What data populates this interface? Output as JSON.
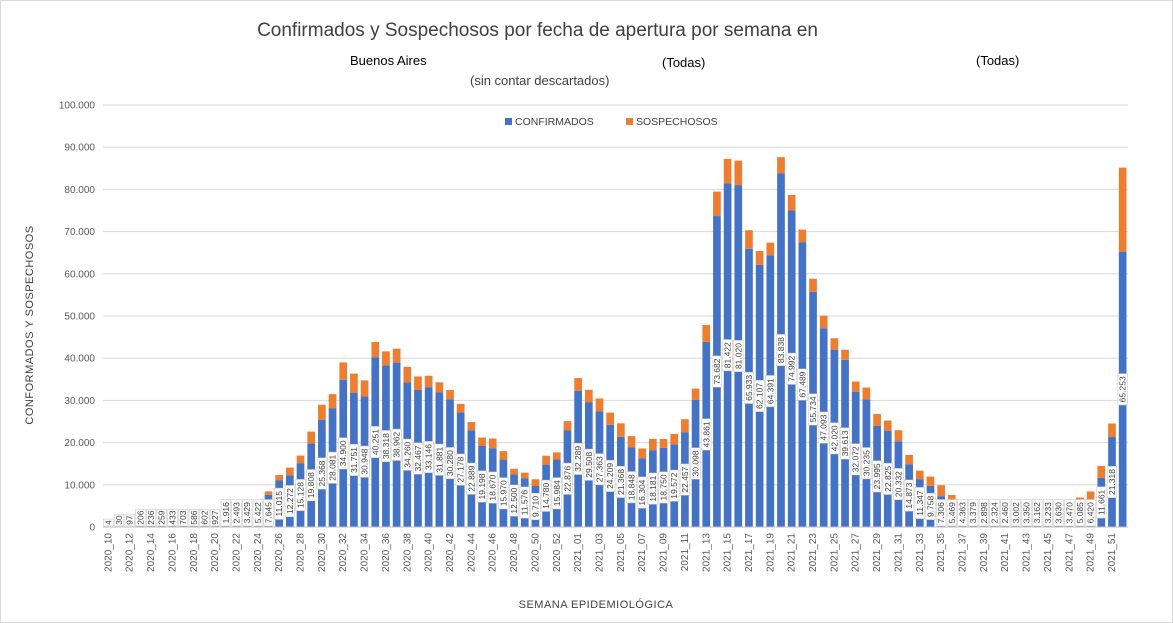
{
  "chart_data": {
    "type": "bar",
    "stacked": true,
    "title": "Confirmados y Sospechosos por fecha de apertura por semana en",
    "subtitle_left": "Buenos Aires",
    "subtitle_mid": "(Todas)",
    "subtitle_right": "(Todas)",
    "subtitle_note": "(sin contar descartados)",
    "xlabel": "SEMANA EPIDEMIOLÓGICA",
    "ylabel": "CONFORMADOS Y SOSPECHOSOS",
    "ylim": [
      0,
      100000
    ],
    "yticks": [
      "0",
      "10.000",
      "20.000",
      "30.000",
      "40.000",
      "50.000",
      "60.000",
      "70.000",
      "80.000",
      "90.000",
      "100.000"
    ],
    "legend": {
      "position": "top",
      "confirmados": "CONFIRMADOS",
      "sospechosos": "SOSPECHOSOS"
    },
    "colors": {
      "confirmados": "#4472c4",
      "sospechosos": "#ed7d31"
    },
    "categories": [
      "2020_10",
      "2020_11",
      "2020_12",
      "2020_13",
      "2020_14",
      "2020_15",
      "2020_16",
      "2020_17",
      "2020_18",
      "2020_19",
      "2020_20",
      "2020_21",
      "2020_22",
      "2020_23",
      "2020_24",
      "2020_25",
      "2020_26",
      "2020_27",
      "2020_28",
      "2020_29",
      "2020_30",
      "2020_31",
      "2020_32",
      "2020_33",
      "2020_34",
      "2020_35",
      "2020_36",
      "2020_37",
      "2020_38",
      "2020_39",
      "2020_40",
      "2020_41",
      "2020_42",
      "2020_43",
      "2020_44",
      "2020_45",
      "2020_46",
      "2020_47",
      "2020_48",
      "2020_49",
      "2020_50",
      "2020_51",
      "2020_52",
      "2020_53",
      "2021_01",
      "2021_02",
      "2021_03",
      "2021_04",
      "2021_05",
      "2021_06",
      "2021_07",
      "2021_08",
      "2021_09",
      "2021_10",
      "2021_11",
      "2021_12",
      "2021_13",
      "2021_14",
      "2021_15",
      "2021_16",
      "2021_17",
      "2021_18",
      "2021_19",
      "2021_20",
      "2021_21",
      "2021_22",
      "2021_23",
      "2021_24",
      "2021_25",
      "2021_26",
      "2021_27",
      "2021_28",
      "2021_29",
      "2021_30",
      "2021_31",
      "2021_32",
      "2021_33",
      "2021_34",
      "2021_35",
      "2021_36",
      "2021_37",
      "2021_38",
      "2021_39",
      "2021_40",
      "2021_41",
      "2021_42",
      "2021_43",
      "2021_44",
      "2021_45",
      "2021_46",
      "2021_47",
      "2021_48",
      "2021_49",
      "2021_50",
      "2021_51",
      "2021_52"
    ],
    "xtick_labels": [
      "2020_10",
      "2020_12",
      "2020_14",
      "2020_16",
      "2020_18",
      "2020_20",
      "2020_22",
      "2020_24",
      "2020_26",
      "2020_28",
      "2020_30",
      "2020_32",
      "2020_34",
      "2020_36",
      "2020_38",
      "2020_40",
      "2020_42",
      "2020_44",
      "2020_46",
      "2020_48",
      "2020_50",
      "2020_52",
      "2021_01",
      "2021_03",
      "2021_05",
      "2021_07",
      "2021_09",
      "2021_11",
      "2021_13",
      "2021_15",
      "2021_17",
      "2021_19",
      "2021_21",
      "2021_23",
      "2021_25",
      "2021_27",
      "2021_29",
      "2021_31",
      "2021_33",
      "2021_35",
      "2021_37",
      "2021_39",
      "2021_41",
      "2021_43",
      "2021_45",
      "2021_47",
      "2021_49",
      "2021_51"
    ],
    "series": [
      {
        "name": "CONFIRMADOS",
        "values": [
          4,
          30,
          97,
          206,
          236,
          259,
          433,
          703,
          586,
          602,
          927,
          1916,
          2493,
          3429,
          5422,
          7645,
          11015,
          12272,
          15128,
          19808,
          25368,
          28081,
          34900,
          31751,
          30948,
          40251,
          38318,
          38962,
          34260,
          32467,
          33146,
          31881,
          30280,
          27178,
          22889,
          19198,
          18670,
          15970,
          12500,
          11576,
          9710,
          14780,
          15984,
          22876,
          32289,
          29508,
          27363,
          24209,
          21368,
          18848,
          16304,
          18181,
          18750,
          19572,
          22457,
          30098,
          43861,
          73682,
          81422,
          81020,
          65933,
          62107,
          64391,
          83838,
          74992,
          67489,
          55734,
          47093,
          42020,
          39613,
          32072,
          30235,
          23995,
          22825,
          20332,
          14873,
          11347,
          9758,
          7306,
          5469,
          4363,
          3379,
          2898,
          2324,
          2460,
          3002,
          3350,
          3162,
          3233,
          3630,
          3470,
          5085,
          6420,
          11661,
          21318,
          65253
        ]
      },
      {
        "name": "SOSPECHOSOS",
        "values": [
          0,
          0,
          0,
          0,
          0,
          0,
          0,
          0,
          0,
          0,
          0,
          0,
          0,
          80,
          500,
          800,
          1300,
          1800,
          1800,
          2800,
          3600,
          3400,
          4100,
          4600,
          3800,
          3600,
          3300,
          3300,
          3700,
          3200,
          2700,
          2400,
          2200,
          2000,
          2000,
          2000,
          2300,
          2000,
          1300,
          1300,
          1600,
          2100,
          1700,
          2200,
          3000,
          3000,
          3100,
          2900,
          3200,
          2700,
          2300,
          2700,
          2100,
          2500,
          3100,
          2700,
          4000,
          5800,
          5800,
          5800,
          4400,
          3300,
          3000,
          3800,
          3700,
          3000,
          3100,
          3000,
          2700,
          2400,
          2400,
          2800,
          2800,
          2400,
          2600,
          2200,
          2000,
          2200,
          2600,
          2100,
          2000,
          1600,
          1300,
          800,
          1000,
          1700,
          1800,
          1700,
          2000,
          2100,
          2100,
          1900,
          2000,
          2800,
          3200,
          19900
        ]
      }
    ],
    "data_labels": [
      "4",
      "30",
      "97",
      "206",
      "236",
      "259",
      "433",
      "703",
      "586",
      "602",
      "927",
      "1.916",
      "2.493",
      "3.429",
      "5.422",
      "7.645",
      "11.015",
      "12.272",
      "15.128",
      "19.808",
      "25.368",
      "28.081",
      "34.900",
      "31.751",
      "30.948",
      "40.251",
      "38.318",
      "38.962",
      "34.260",
      "32.467",
      "33.146",
      "31.881",
      "30.280",
      "27.178",
      "22.889",
      "19.198",
      "18.670",
      "15.970",
      "12.500",
      "11.576",
      "9.710",
      "14.780",
      "15.984",
      "22.876",
      "32.289",
      "29.508",
      "27.363",
      "24.209",
      "21.368",
      "18.848",
      "16.304",
      "18.181",
      "18.750",
      "19.572",
      "22.457",
      "30.098",
      "43.861",
      "73.682",
      "81.422",
      "81.020",
      "65.933",
      "62.107",
      "64.391",
      "83.838",
      "74.992",
      "67.489",
      "55.734",
      "47.093",
      "42.020",
      "39.613",
      "32.072",
      "30.235",
      "23.995",
      "22.825",
      "20.332",
      "14.873",
      "11.347",
      "9.758",
      "7.306",
      "5.469",
      "4.363",
      "3.379",
      "2.898",
      "2.324",
      "2.460",
      "3.002",
      "3.350",
      "3.162",
      "3.233",
      "3.630",
      "3.470",
      "5.085",
      "6.420",
      "11.661",
      "21.318",
      "65.253"
    ]
  }
}
